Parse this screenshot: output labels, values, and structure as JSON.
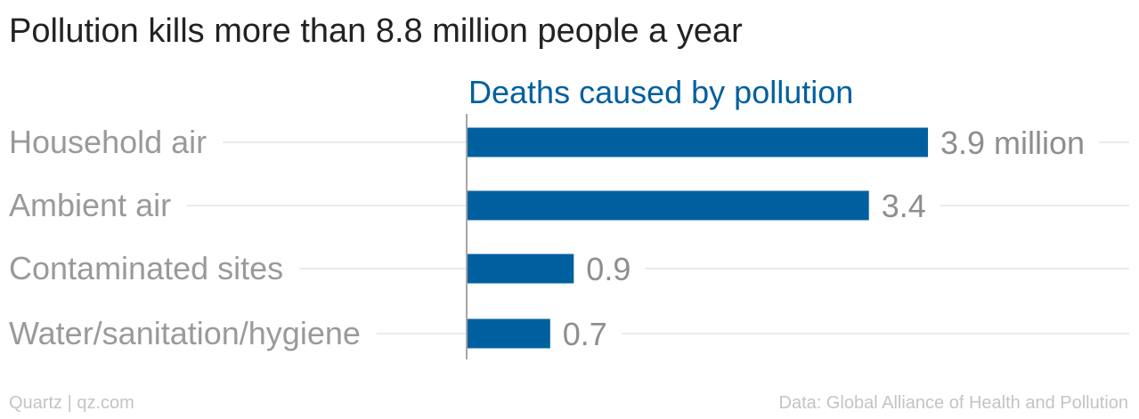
{
  "title": "Pollution kills more than 8.8 million people a year",
  "footer": {
    "source_left": "Quartz | qz.com",
    "source_right": "Data: Global Alliance of Health and Pollution"
  },
  "colors": {
    "bar": "#00609f",
    "series_label": "#00609f",
    "category_text": "#9a9a9a",
    "value_text": "#8e8e8e",
    "grid": "#ebebeb",
    "axis": "#888888"
  },
  "chart_data": {
    "type": "bar",
    "orientation": "horizontal",
    "title": "Pollution kills more than 8.8 million people a year",
    "series": [
      {
        "name": "Deaths caused by pollution",
        "values": [
          3.9,
          3.4,
          0.9,
          0.7
        ]
      }
    ],
    "categories": [
      "Household air",
      "Ambient air",
      "Contaminated sites",
      "Water/sanitation/hygiene"
    ],
    "value_labels": [
      "3.9 million",
      "3.4",
      "0.9",
      "0.7"
    ],
    "unit": "million",
    "xlim": [
      0,
      4.2
    ],
    "grid": true,
    "legend": "none"
  }
}
